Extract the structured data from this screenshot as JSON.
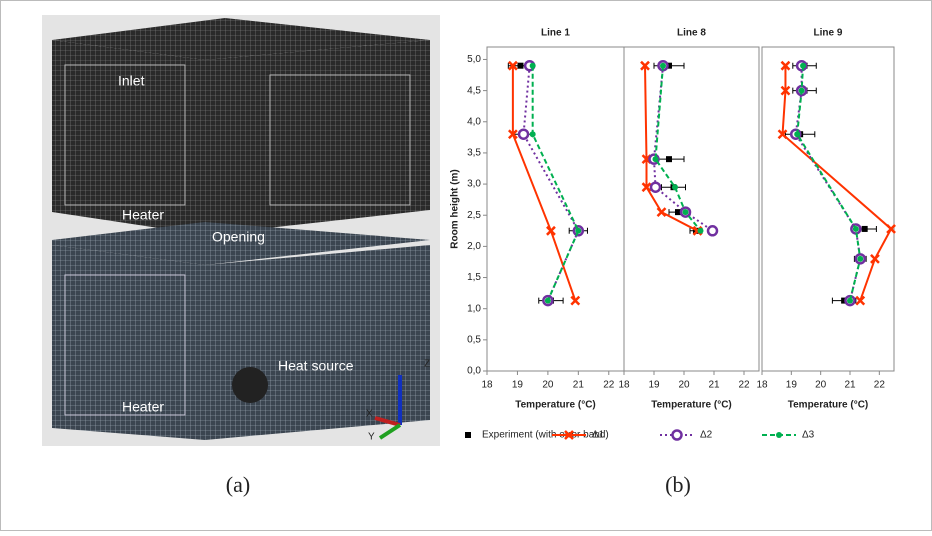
{
  "figure": {
    "image_labels": [
      "Inlet",
      "Heater",
      "Opening",
      "Heat source",
      "Heater"
    ],
    "axis_labels": [
      "X",
      "Y",
      "Z"
    ],
    "captions": [
      "(a)",
      "(b)"
    ]
  },
  "chart_data": [
    {
      "type": "line",
      "title": "Line 1",
      "x_label": "Temperature (°C)",
      "y_label": "Room height (m)",
      "xlim": [
        18,
        22.5
      ],
      "xticks": [
        18,
        19,
        20,
        21,
        22
      ],
      "ylim": [
        0,
        5.2
      ],
      "yticks": [
        {
          "value": 0,
          "label": "0,0"
        },
        {
          "value": 0.5,
          "label": "0,5"
        },
        {
          "value": 1,
          "label": "1,0"
        },
        {
          "value": 1.5,
          "label": "1,5"
        },
        {
          "value": 2,
          "label": "2,0"
        },
        {
          "value": 2.5,
          "label": "2,5"
        },
        {
          "value": 3,
          "label": "3,0"
        },
        {
          "value": 3.5,
          "label": "3,5"
        },
        {
          "value": 4,
          "label": "4,0"
        },
        {
          "value": 4.5,
          "label": "4,5"
        },
        {
          "value": 5,
          "label": "5,0"
        }
      ],
      "series": [
        {
          "name": "Experiment (with error band)",
          "color": "#000000",
          "marker": "square",
          "line_style": "none",
          "x": [
            19.1,
            19.2,
            21.0,
            20.1
          ],
          "y": [
            4.9,
            3.8,
            2.25,
            1.13
          ],
          "error": [
            0.4,
            0.3,
            0.3,
            0.4
          ]
        },
        {
          "name": "Δ1",
          "color": "#ff3300",
          "marker": "x",
          "line_style": "solid",
          "x": [
            18.85,
            18.85,
            20.1,
            20.9
          ],
          "y": [
            4.9,
            3.8,
            2.25,
            1.13
          ]
        },
        {
          "name": "Δ2",
          "color": "#7030a0",
          "marker": "circle",
          "line_style": "dotted",
          "x": [
            19.4,
            19.2,
            21.0,
            20.0
          ],
          "y": [
            4.9,
            3.8,
            2.25,
            1.13
          ]
        },
        {
          "name": "Δ3",
          "color": "#00b050",
          "marker": "dot",
          "line_style": "dashed",
          "x": [
            19.5,
            19.5,
            21.0,
            20.0
          ],
          "y": [
            4.9,
            3.8,
            2.25,
            1.13
          ]
        }
      ]
    },
    {
      "type": "line",
      "title": "Line 8",
      "x_label": "Temperature (°C)",
      "xlim": [
        18,
        22.5
      ],
      "xticks": [
        18,
        19,
        20,
        21,
        22
      ],
      "ylim": [
        0,
        5.2
      ],
      "series": [
        {
          "color": "#000000",
          "marker": "square",
          "line_style": "none",
          "x": [
            19.5,
            19.5,
            19.65,
            19.8,
            20.4
          ],
          "y": [
            4.9,
            3.4,
            2.95,
            2.55,
            2.25
          ],
          "error": [
            0.5,
            0.5,
            0.4,
            0.3,
            0.2
          ]
        },
        {
          "color": "#ff3300",
          "marker": "x",
          "line_style": "solid",
          "x": [
            18.7,
            18.75,
            18.75,
            19.25,
            20.45
          ],
          "y": [
            4.9,
            3.4,
            2.95,
            2.55,
            2.25
          ]
        },
        {
          "color": "#7030a0",
          "marker": "circle",
          "line_style": "dotted",
          "x": [
            19.3,
            19.0,
            19.05,
            20.05,
            20.95
          ],
          "y": [
            4.9,
            3.4,
            2.95,
            2.55,
            2.25
          ]
        },
        {
          "color": "#00b050",
          "marker": "dot",
          "line_style": "dashed",
          "x": [
            19.3,
            19.05,
            19.7,
            20.05,
            20.55
          ],
          "y": [
            4.9,
            3.4,
            2.95,
            2.55,
            2.25
          ]
        }
      ]
    },
    {
      "type": "line",
      "title": "Line 9",
      "x_label": "Temperature (°C)",
      "xlim": [
        18,
        22.5
      ],
      "xticks": [
        18,
        19,
        20,
        21,
        22
      ],
      "ylim": [
        0,
        5.2
      ],
      "series": [
        {
          "color": "#000000",
          "marker": "square",
          "line_style": "none",
          "x": [
            19.45,
            19.45,
            19.3,
            21.5,
            21.35,
            20.8
          ],
          "y": [
            4.9,
            4.5,
            3.8,
            2.28,
            1.8,
            1.13
          ],
          "error": [
            0.4,
            0.4,
            0.5,
            0.4,
            0.2,
            0.4
          ]
        },
        {
          "color": "#ff3300",
          "marker": "x",
          "line_style": "solid",
          "x": [
            18.8,
            18.8,
            18.7,
            22.4,
            21.85,
            21.35
          ],
          "y": [
            4.9,
            4.5,
            3.8,
            2.28,
            1.8,
            1.13
          ]
        },
        {
          "color": "#7030a0",
          "marker": "circle",
          "line_style": "dotted",
          "x": [
            19.35,
            19.35,
            19.15,
            21.2,
            21.35,
            21.0
          ],
          "y": [
            4.9,
            4.5,
            3.8,
            2.28,
            1.8,
            1.13
          ]
        },
        {
          "color": "#00b050",
          "marker": "dot",
          "line_style": "dashed",
          "x": [
            19.4,
            19.35,
            19.2,
            21.2,
            21.35,
            21.0
          ],
          "y": [
            4.9,
            4.5,
            3.8,
            2.28,
            1.8,
            1.13
          ]
        }
      ]
    }
  ]
}
